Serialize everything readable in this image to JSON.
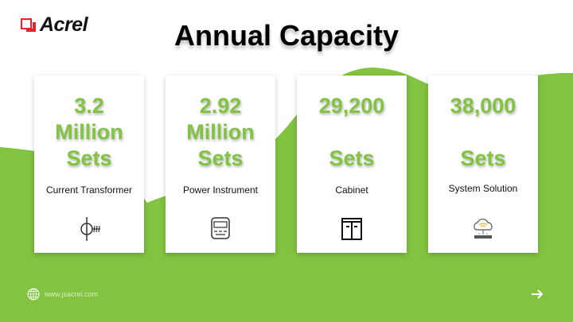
{
  "brand": {
    "name": "Acrel",
    "logo_color": "#e8202a"
  },
  "title": "Annual Capacity",
  "colors": {
    "accent": "#82c341"
  },
  "cards": [
    {
      "value_lines": [
        "3.2",
        "Million",
        "Sets"
      ],
      "label": "Current Transformer",
      "icon": "current-transformer-icon"
    },
    {
      "value_lines": [
        "2.92",
        "Million",
        "Sets"
      ],
      "label": "Power Instrument",
      "icon": "power-meter-icon"
    },
    {
      "value_lines": [
        "29,200",
        "",
        "Sets"
      ],
      "label": "Cabinet",
      "icon": "cabinet-icon"
    },
    {
      "value_lines": [
        "38,000",
        "",
        "Sets"
      ],
      "label": "System Solution",
      "icon": "cloud-router-icon"
    }
  ],
  "footer": {
    "website": "www.jsacrel.com",
    "icon": "globe-icon",
    "next": "arrow-right-icon"
  }
}
